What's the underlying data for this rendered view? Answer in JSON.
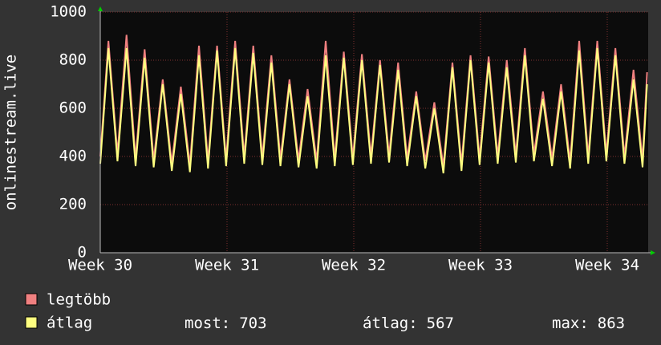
{
  "chart_data": {
    "type": "line",
    "y_label": "onlinestream.live",
    "x": [
      0,
      0.45,
      0.95,
      1.45,
      1.95,
      2.45,
      2.95,
      3.45,
      3.95,
      4.45,
      4.95,
      5.45,
      5.95,
      6.45,
      6.95,
      7.45,
      7.95,
      8.45,
      8.95,
      9.45,
      9.95,
      10.45,
      10.95,
      11.45,
      11.95,
      12.45,
      12.95,
      13.45,
      13.95,
      14.45,
      14.95,
      15.45,
      15.95,
      16.45,
      16.95,
      17.45,
      17.95,
      18.45,
      18.95,
      19.45,
      19.95,
      20.45,
      20.95,
      21.45,
      21.95,
      22.45,
      22.95,
      23.45,
      23.95,
      24.45,
      24.95,
      25.45,
      25.95,
      26.45,
      26.95,
      27.45,
      27.95,
      28.45,
      28.95,
      29.45,
      29.95,
      30.2
    ],
    "xticks": [
      {
        "value": 0,
        "label": "Week 30"
      },
      {
        "value": 7,
        "label": "Week 31"
      },
      {
        "value": 14,
        "label": "Week 32"
      },
      {
        "value": 21,
        "label": "Week 33"
      },
      {
        "value": 28,
        "label": "Week 34"
      }
    ],
    "xlim": [
      0,
      30.26
    ],
    "ylim": [
      0,
      1000
    ],
    "yticks": [
      0,
      200,
      400,
      600,
      800,
      1000
    ],
    "series": [
      {
        "name": "legtöbb",
        "color": "#f08080",
        "values": [
          400,
          880,
          410,
          905,
          390,
          845,
          385,
          720,
          370,
          690,
          365,
          860,
          380,
          860,
          390,
          880,
          400,
          860,
          395,
          820,
          390,
          720,
          385,
          680,
          380,
          880,
          390,
          835,
          395,
          825,
          400,
          800,
          405,
          790,
          390,
          670,
          380,
          625,
          360,
          790,
          370,
          820,
          395,
          815,
          400,
          800,
          405,
          850,
          410,
          670,
          390,
          700,
          380,
          880,
          400,
          880,
          410,
          850,
          400,
          760,
          385,
          750
        ]
      },
      {
        "name": "átlag",
        "color": "#ffff80",
        "values": [
          370,
          850,
          380,
          850,
          360,
          810,
          355,
          700,
          340,
          660,
          335,
          820,
          350,
          840,
          360,
          850,
          370,
          830,
          365,
          790,
          360,
          700,
          355,
          650,
          350,
          820,
          360,
          810,
          365,
          800,
          370,
          780,
          375,
          760,
          360,
          650,
          350,
          600,
          330,
          770,
          340,
          800,
          365,
          790,
          370,
          770,
          375,
          820,
          380,
          640,
          360,
          670,
          350,
          840,
          370,
          850,
          380,
          820,
          370,
          720,
          355,
          700
        ]
      }
    ],
    "stats": [
      {
        "label": "most:",
        "value": 703
      },
      {
        "label": "átlag:",
        "value": 567
      },
      {
        "label": "max:",
        "value": 863
      }
    ]
  }
}
